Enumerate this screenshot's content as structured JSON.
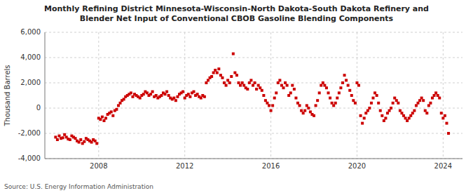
{
  "chart_data": {
    "type": "scatter",
    "title": "Monthly Refining District Minnesota-Wisconsin-North Dakota-South Dakota Refinery and\nBlender Net Input of Conventional CBOB Gasoline Blending Components",
    "ylabel": "Thousand Barrels",
    "source": "Source: U.S. Energy Information Administration",
    "color": "#cc0000",
    "marker": "square",
    "grid": true,
    "xlim": [
      2005.5,
      2024.9
    ],
    "xticks": [
      2008,
      2012,
      2016,
      2020,
      2024
    ],
    "ylim": [
      -4000,
      6000
    ],
    "yticks": [
      {
        "value": -4000,
        "label": "-4,000"
      },
      {
        "value": -2000,
        "label": "-2,000"
      },
      0,
      {
        "value": 2000,
        "label": "2,000"
      },
      {
        "value": 4000,
        "label": "4,000"
      },
      {
        "value": 6000,
        "label": "6,000"
      }
    ],
    "x": [
      2006.0,
      2006.083,
      2006.167,
      2006.25,
      2006.333,
      2006.417,
      2006.5,
      2006.583,
      2006.667,
      2006.75,
      2006.833,
      2006.917,
      2007.0,
      2007.083,
      2007.167,
      2007.25,
      2007.333,
      2007.417,
      2007.5,
      2007.583,
      2007.667,
      2007.75,
      2007.833,
      2007.917,
      2008.0,
      2008.083,
      2008.167,
      2008.25,
      2008.333,
      2008.417,
      2008.5,
      2008.583,
      2008.667,
      2008.75,
      2008.833,
      2008.917,
      2009.0,
      2009.083,
      2009.167,
      2009.25,
      2009.333,
      2009.417,
      2009.5,
      2009.583,
      2009.667,
      2009.75,
      2009.833,
      2009.917,
      2010.0,
      2010.083,
      2010.167,
      2010.25,
      2010.333,
      2010.417,
      2010.5,
      2010.583,
      2010.667,
      2010.75,
      2010.833,
      2010.917,
      2011.0,
      2011.083,
      2011.167,
      2011.25,
      2011.333,
      2011.417,
      2011.5,
      2011.583,
      2011.667,
      2011.75,
      2011.833,
      2011.917,
      2012.0,
      2012.083,
      2012.167,
      2012.25,
      2012.333,
      2012.417,
      2012.5,
      2012.583,
      2012.667,
      2012.75,
      2012.833,
      2012.917,
      2013.0,
      2013.083,
      2013.167,
      2013.25,
      2013.333,
      2013.417,
      2013.5,
      2013.583,
      2013.667,
      2013.75,
      2013.833,
      2013.917,
      2014.0,
      2014.083,
      2014.167,
      2014.25,
      2014.333,
      2014.417,
      2014.5,
      2014.583,
      2014.667,
      2014.75,
      2014.833,
      2014.917,
      2015.0,
      2015.083,
      2015.167,
      2015.25,
      2015.333,
      2015.417,
      2015.5,
      2015.583,
      2015.667,
      2015.75,
      2015.833,
      2015.917,
      2016.0,
      2016.083,
      2016.167,
      2016.25,
      2016.333,
      2016.417,
      2016.5,
      2016.583,
      2016.667,
      2016.75,
      2016.833,
      2016.917,
      2017.0,
      2017.083,
      2017.167,
      2017.25,
      2017.333,
      2017.417,
      2017.5,
      2017.583,
      2017.667,
      2017.75,
      2017.833,
      2017.917,
      2018.0,
      2018.083,
      2018.167,
      2018.25,
      2018.333,
      2018.417,
      2018.5,
      2018.583,
      2018.667,
      2018.75,
      2018.833,
      2018.917,
      2019.0,
      2019.083,
      2019.167,
      2019.25,
      2019.333,
      2019.417,
      2019.5,
      2019.583,
      2019.667,
      2019.75,
      2019.833,
      2019.917,
      2020.0,
      2020.083,
      2020.167,
      2020.25,
      2020.333,
      2020.417,
      2020.5,
      2020.583,
      2020.667,
      2020.75,
      2020.833,
      2020.917,
      2021.0,
      2021.083,
      2021.167,
      2021.25,
      2021.333,
      2021.417,
      2021.5,
      2021.583,
      2021.667,
      2021.75,
      2021.833,
      2021.917,
      2022.0,
      2022.083,
      2022.167,
      2022.25,
      2022.333,
      2022.417,
      2022.5,
      2022.583,
      2022.667,
      2022.75,
      2022.833,
      2022.917,
      2023.0,
      2023.083,
      2023.167,
      2023.25,
      2023.333,
      2023.417,
      2023.5,
      2023.583,
      2023.667,
      2023.75,
      2023.833,
      2023.917,
      2024.0,
      2024.083,
      2024.167,
      2024.25
    ],
    "values": [
      -2300,
      -2500,
      -2200,
      -2400,
      -2350,
      -2100,
      -2300,
      -2450,
      -2500,
      -2200,
      -2300,
      -2400,
      -2600,
      -2700,
      -2500,
      -2800,
      -2650,
      -2400,
      -2500,
      -2600,
      -2700,
      -2500,
      -2600,
      -2800,
      -800,
      -900,
      -700,
      -1000,
      -800,
      -500,
      -400,
      -300,
      -600,
      -200,
      -100,
      200,
      400,
      600,
      700,
      900,
      1000,
      1100,
      1200,
      900,
      1100,
      1000,
      900,
      800,
      1000,
      1100,
      1300,
      1200,
      1000,
      1100,
      1300,
      900,
      1000,
      800,
      900,
      1000,
      1200,
      1100,
      1300,
      1000,
      800,
      700,
      800,
      600,
      900,
      1100,
      1200,
      1300,
      800,
      1000,
      1100,
      900,
      1200,
      1300,
      1000,
      1100,
      900,
      800,
      1000,
      900,
      2000,
      2200,
      2400,
      2500,
      2800,
      3000,
      2800,
      3100,
      2600,
      2400,
      2000,
      1800,
      2200,
      2000,
      2500,
      4300,
      2800,
      2600,
      2000,
      1800,
      2000,
      1800,
      1600,
      1500,
      2000,
      2200,
      1800,
      2000,
      1500,
      1800,
      1600,
      1400,
      1000,
      600,
      400,
      200,
      -200,
      200,
      800,
      1200,
      2000,
      2200,
      1800,
      1600,
      2000,
      1800,
      1000,
      1200,
      1800,
      1500,
      800,
      400,
      200,
      -200,
      -400,
      -200,
      200,
      0,
      -300,
      -500,
      -600,
      200,
      600,
      1200,
      1800,
      2000,
      1800,
      1600,
      1200,
      800,
      400,
      200,
      400,
      800,
      1200,
      1600,
      2000,
      2600,
      2200,
      1800,
      1400,
      1000,
      600,
      400,
      2000,
      1800,
      -600,
      -1200,
      -800,
      -400,
      -200,
      0,
      400,
      800,
      1200,
      1000,
      400,
      -200,
      -600,
      -1000,
      -800,
      -400,
      -200,
      0,
      400,
      800,
      600,
      400,
      -200,
      -400,
      -600,
      -800,
      -1000,
      -800,
      -600,
      -400,
      -200,
      200,
      400,
      600,
      800,
      600,
      -200,
      -400,
      200,
      400,
      800,
      1000,
      1200,
      1000,
      800,
      -400,
      -800,
      -600,
      -1200,
      -2000
    ]
  }
}
